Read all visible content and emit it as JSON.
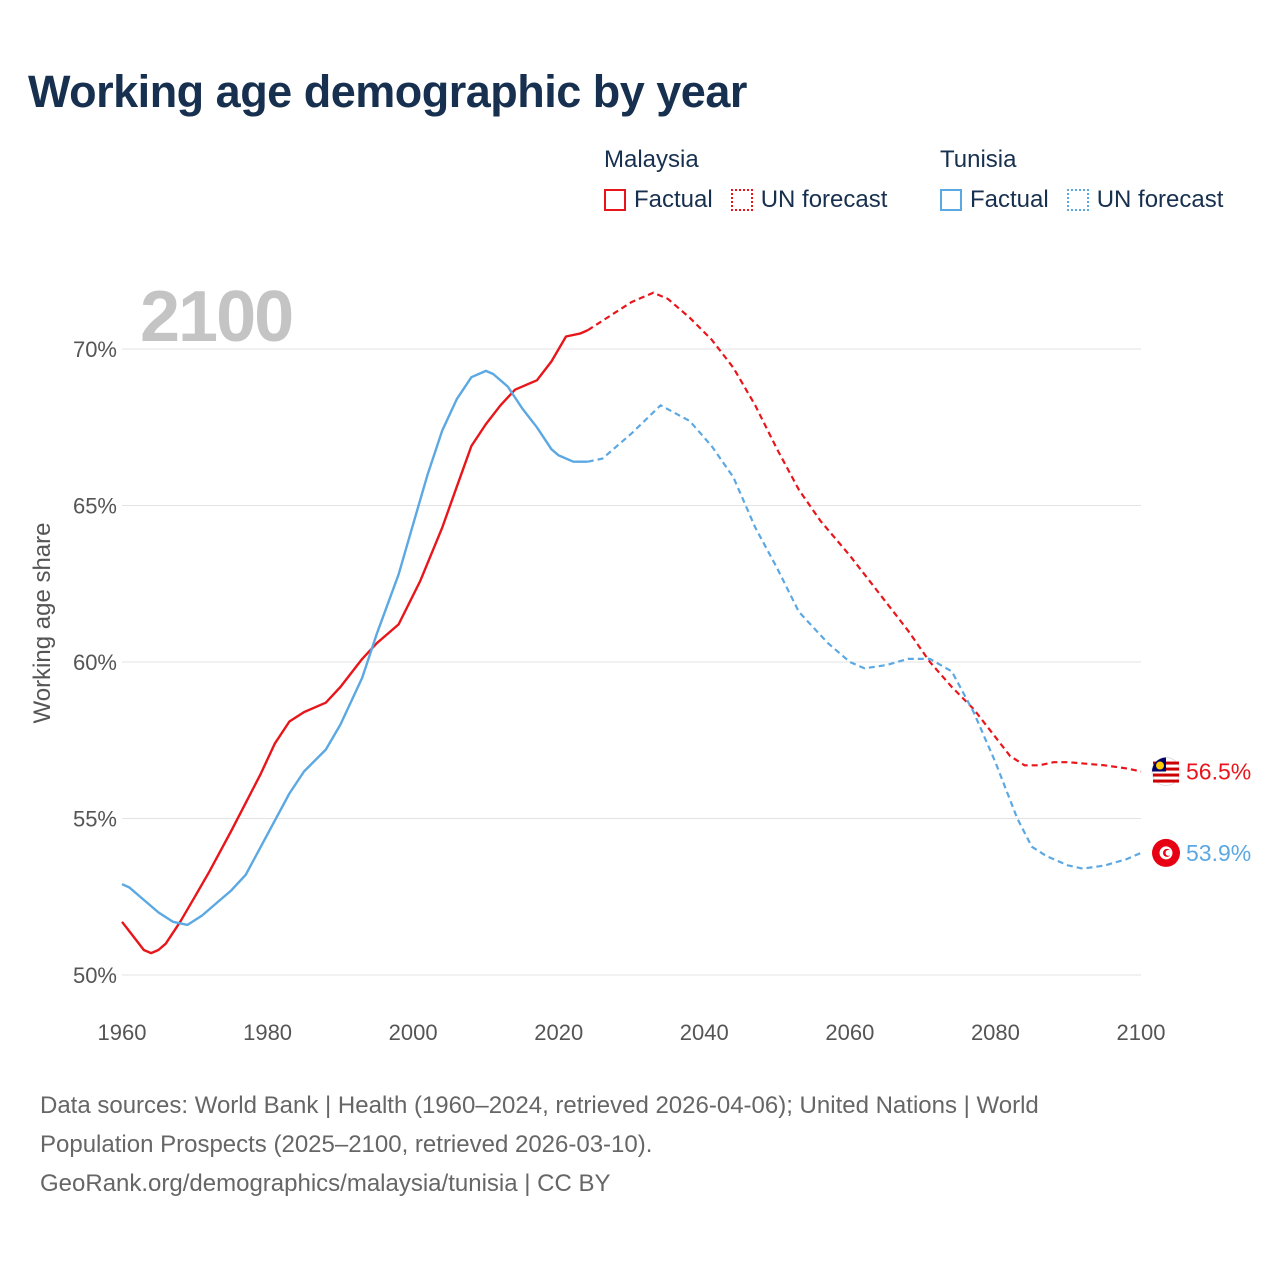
{
  "title": "Working age demographic by year",
  "year_display": "2100",
  "legend": {
    "groups": [
      {
        "name": "Malaysia",
        "factual_label": "Factual",
        "forecast_label": "UN forecast",
        "color": "#e8161b"
      },
      {
        "name": "Tunisia",
        "factual_label": "Factual",
        "forecast_label": "UN forecast",
        "color": "#5ba8e3"
      }
    ]
  },
  "footer": {
    "line1": "Data sources: World Bank | Health (1960–2024, retrieved 2026-04-06); United Nations | World",
    "line2": "Population Prospects (2025–2100, retrieved 2026-03-10).",
    "line3": "GeoRank.org/demographics/malaysia/tunisia | CC BY"
  },
  "chart_data": {
    "type": "line",
    "title": "Working age demographic by year",
    "xlabel": "",
    "ylabel": "Working age share",
    "xlim": [
      1960,
      2100
    ],
    "ylim": [
      50,
      72
    ],
    "x_ticks": [
      1960,
      1980,
      2000,
      2020,
      2040,
      2060,
      2080,
      2100
    ],
    "y_ticks": [
      {
        "value": 50,
        "label": "50%"
      },
      {
        "value": 55,
        "label": "55%"
      },
      {
        "value": 60,
        "label": "60%"
      },
      {
        "value": 65,
        "label": "65%"
      },
      {
        "value": 70,
        "label": "70%"
      }
    ],
    "factual_end_year": 2024,
    "series": [
      {
        "name": "Malaysia",
        "color": "#e8161b",
        "end_label": "56.5%",
        "x": [
          1960,
          1962,
          1963,
          1964,
          1965,
          1966,
          1968,
          1970,
          1972,
          1975,
          1977,
          1979,
          1981,
          1983,
          1985,
          1987,
          1988,
          1990,
          1993,
          1995,
          1998,
          2001,
          2004,
          2006,
          2008,
          2010,
          2012,
          2014,
          2017,
          2019,
          2021,
          2023,
          2024,
          2026,
          2030,
          2033,
          2035,
          2038,
          2041,
          2044,
          2047,
          2050,
          2053,
          2056,
          2060,
          2064,
          2068,
          2071,
          2074,
          2077,
          2080,
          2082,
          2084,
          2086,
          2088,
          2090,
          2095,
          2098,
          2100
        ],
        "values": [
          51.7,
          51.1,
          50.8,
          50.7,
          50.8,
          51.0,
          51.7,
          52.5,
          53.3,
          54.6,
          55.5,
          56.4,
          57.4,
          58.1,
          58.4,
          58.6,
          58.7,
          59.2,
          60.1,
          60.6,
          61.2,
          62.6,
          64.3,
          65.6,
          66.9,
          67.6,
          68.2,
          68.7,
          69.0,
          69.6,
          70.4,
          70.5,
          70.6,
          70.9,
          71.5,
          71.8,
          71.6,
          71.0,
          70.3,
          69.4,
          68.2,
          66.8,
          65.5,
          64.5,
          63.4,
          62.2,
          61.0,
          60.0,
          59.2,
          58.5,
          57.6,
          57.0,
          56.7,
          56.7,
          56.8,
          56.8,
          56.7,
          56.6,
          56.5
        ]
      },
      {
        "name": "Tunisia",
        "color": "#5ba8e3",
        "end_label": "53.9%",
        "x": [
          1960,
          1961,
          1963,
          1965,
          1967,
          1969,
          1971,
          1973,
          1975,
          1977,
          1980,
          1983,
          1985,
          1988,
          1990,
          1993,
          1995,
          1998,
          2000,
          2002,
          2004,
          2006,
          2008,
          2010,
          2011,
          2013,
          2015,
          2017,
          2019,
          2020,
          2022,
          2024,
          2026,
          2030,
          2034,
          2038,
          2041,
          2044,
          2047,
          2050,
          2053,
          2057,
          2060,
          2062,
          2065,
          2068,
          2071,
          2074,
          2077,
          2080,
          2083,
          2085,
          2087,
          2090,
          2092,
          2095,
          2098,
          2100
        ],
        "values": [
          52.9,
          52.8,
          52.4,
          52.0,
          51.7,
          51.6,
          51.9,
          52.3,
          52.7,
          53.2,
          54.5,
          55.8,
          56.5,
          57.2,
          58.0,
          59.5,
          60.9,
          62.8,
          64.4,
          66.0,
          67.4,
          68.4,
          69.1,
          69.3,
          69.2,
          68.8,
          68.1,
          67.5,
          66.8,
          66.6,
          66.4,
          66.4,
          66.5,
          67.3,
          68.2,
          67.7,
          66.9,
          65.9,
          64.3,
          63.0,
          61.6,
          60.6,
          60.0,
          59.8,
          59.9,
          60.1,
          60.1,
          59.7,
          58.4,
          56.8,
          55.0,
          54.1,
          53.8,
          53.5,
          53.4,
          53.5,
          53.7,
          53.9
        ]
      }
    ]
  }
}
